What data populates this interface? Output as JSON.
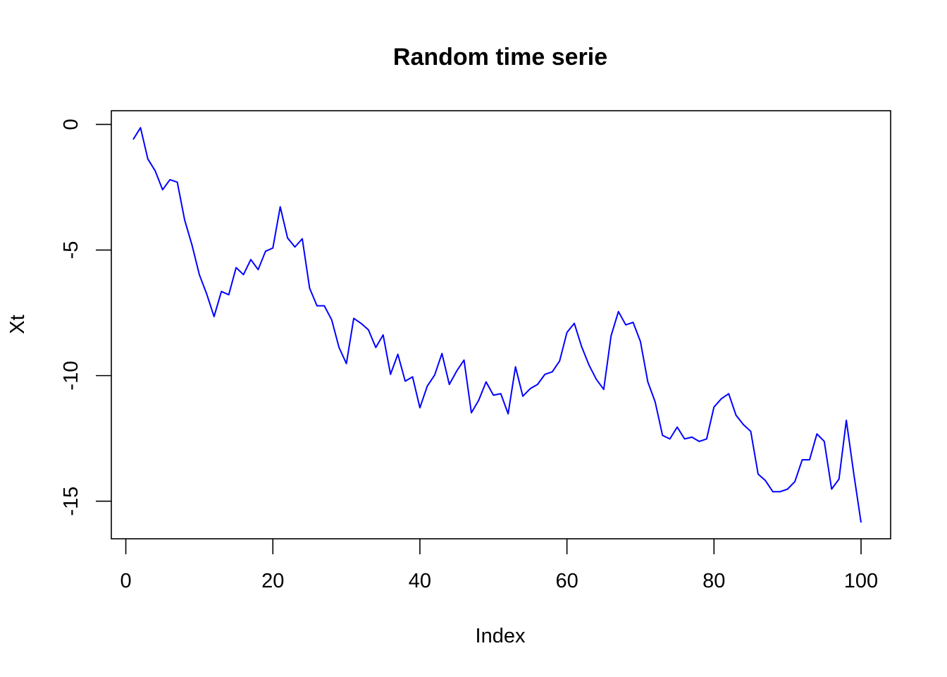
{
  "chart_data": {
    "type": "line",
    "title": "Random time serie",
    "xlabel": "Index",
    "ylabel": "Xt",
    "xlim": [
      1,
      100
    ],
    "ylim": [
      -15.85,
      -0.1
    ],
    "x_ticks": [
      0,
      20,
      40,
      60,
      80,
      100
    ],
    "x_tick_labels": [
      "0",
      "20",
      "40",
      "60",
      "80",
      "100"
    ],
    "y_ticks": [
      0,
      -5,
      -10,
      -15
    ],
    "y_tick_labels": [
      "0",
      "-5",
      "-10",
      "-15"
    ],
    "grid": false,
    "legend": "none",
    "series": [
      {
        "color": "#0000ff",
        "x": [
          1,
          2,
          3,
          4,
          5,
          6,
          7,
          8,
          9,
          10,
          11,
          12,
          13,
          14,
          15,
          16,
          17,
          18,
          19,
          20,
          21,
          22,
          23,
          24,
          25,
          26,
          27,
          28,
          29,
          30,
          31,
          32,
          33,
          34,
          35,
          36,
          37,
          38,
          39,
          40,
          41,
          42,
          43,
          44,
          45,
          46,
          47,
          48,
          49,
          50,
          51,
          52,
          53,
          54,
          55,
          56,
          57,
          58,
          59,
          60,
          61,
          62,
          63,
          64,
          65,
          66,
          67,
          68,
          69,
          70,
          71,
          72,
          73,
          74,
          75,
          76,
          77,
          78,
          79,
          80,
          81,
          82,
          83,
          84,
          85,
          86,
          87,
          88,
          89,
          90,
          91,
          92,
          93,
          94,
          95,
          96,
          97,
          98,
          99,
          100
        ],
        "values": [
          -0.6,
          -0.13,
          -1.38,
          -1.85,
          -2.6,
          -2.2,
          -2.3,
          -3.8,
          -4.8,
          -5.98,
          -6.75,
          -7.65,
          -6.65,
          -6.78,
          -5.7,
          -5.98,
          -5.38,
          -5.78,
          -5.05,
          -4.92,
          -3.28,
          -4.52,
          -4.88,
          -4.55,
          -6.52,
          -7.22,
          -7.22,
          -7.78,
          -8.88,
          -9.52,
          -7.72,
          -7.92,
          -8.18,
          -8.88,
          -8.38,
          -9.95,
          -9.15,
          -10.22,
          -10.05,
          -11.28,
          -10.42,
          -9.98,
          -9.12,
          -10.35,
          -9.82,
          -9.38,
          -11.48,
          -10.98,
          -10.25,
          -10.78,
          -10.72,
          -11.52,
          -9.65,
          -10.82,
          -10.52,
          -10.35,
          -9.95,
          -9.85,
          -9.42,
          -8.28,
          -7.92,
          -8.85,
          -9.58,
          -10.15,
          -10.55,
          -8.42,
          -7.45,
          -7.98,
          -7.88,
          -8.65,
          -10.25,
          -11.05,
          -12.38,
          -12.52,
          -12.05,
          -12.52,
          -12.45,
          -12.62,
          -12.52,
          -11.25,
          -10.92,
          -10.72,
          -11.58,
          -11.95,
          -12.22,
          -13.92,
          -14.18,
          -14.62,
          -14.62,
          -14.52,
          -14.22,
          -13.35,
          -13.35,
          -12.32,
          -12.62,
          -14.52,
          -14.12,
          -11.78,
          -13.88,
          -15.85
        ]
      }
    ]
  }
}
